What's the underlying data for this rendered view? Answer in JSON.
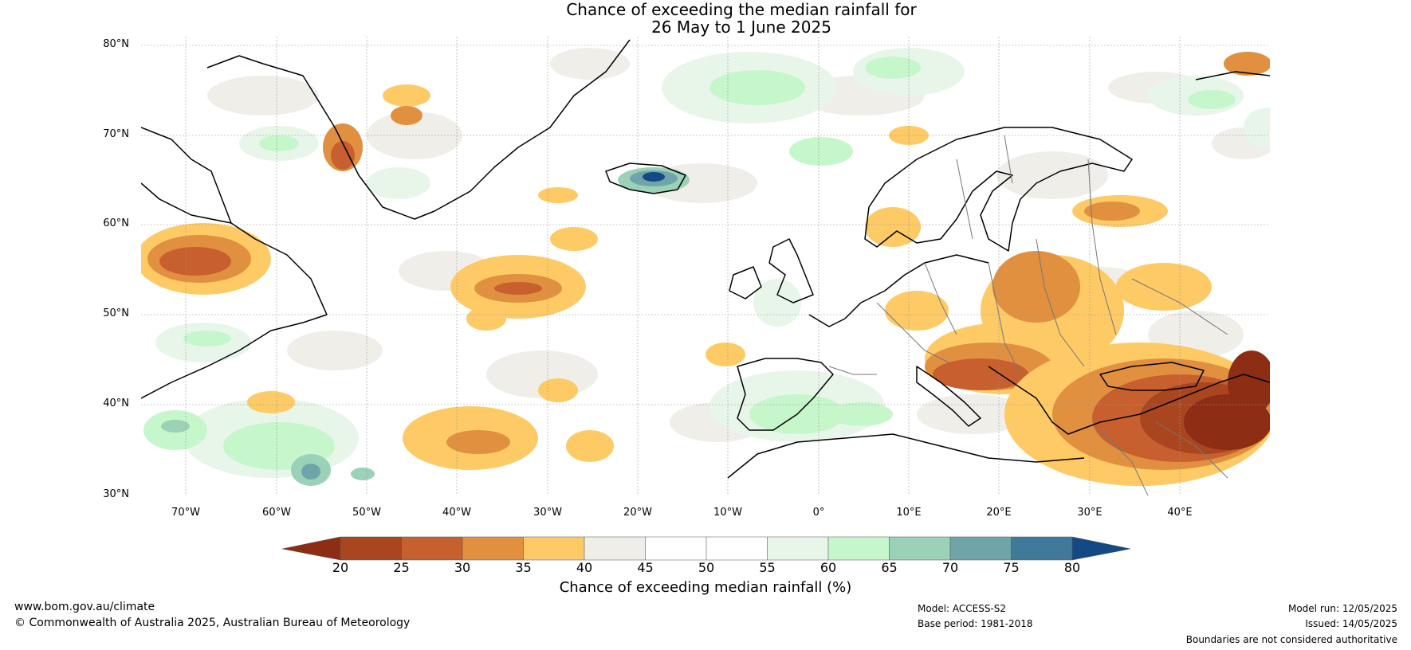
{
  "title": {
    "line1": "Chance of exceeding the median rainfall for",
    "line2": "26 May to 1 June 2025"
  },
  "map": {
    "lat_labels": [
      "80°N",
      "70°N",
      "60°N",
      "50°N",
      "40°N",
      "30°N"
    ],
    "lon_labels": [
      "70°W",
      "60°W",
      "50°W",
      "40°W",
      "30°W",
      "20°W",
      "10°W",
      "0°",
      "10°E",
      "20°E",
      "30°E",
      "40°E"
    ],
    "extent": {
      "lon_min": -75,
      "lon_max": 50,
      "lat_min": 30,
      "lat_max": 81
    }
  },
  "colorbar": {
    "ticks": [
      "20",
      "25",
      "30",
      "35",
      "40",
      "45",
      "50",
      "55",
      "60",
      "65",
      "70",
      "75",
      "80"
    ],
    "colors": [
      "#8c2d14",
      "#a9461f",
      "#c7602e",
      "#e0903f",
      "#fdca65",
      "#f0eee9",
      "#ffffff",
      "#ffffff",
      "#e8f6ea",
      "#c5f7cb",
      "#9ad1b7",
      "#6fa5a9",
      "#41799a",
      "#134a85"
    ],
    "label": "Chance of exceeding median rainfall (%)"
  },
  "footer": {
    "url": "www.bom.gov.au/climate",
    "copyright": "© Commonwealth of Australia 2025, Australian Bureau of Meteorology",
    "model": "Model: ACCESS-S2",
    "base_period": "Base period: 1981-2018",
    "model_run": "Model run: 12/05/2025",
    "issued": "Issued: 14/05/2025",
    "disclaimer": "Boundaries are not considered authoritative"
  }
}
